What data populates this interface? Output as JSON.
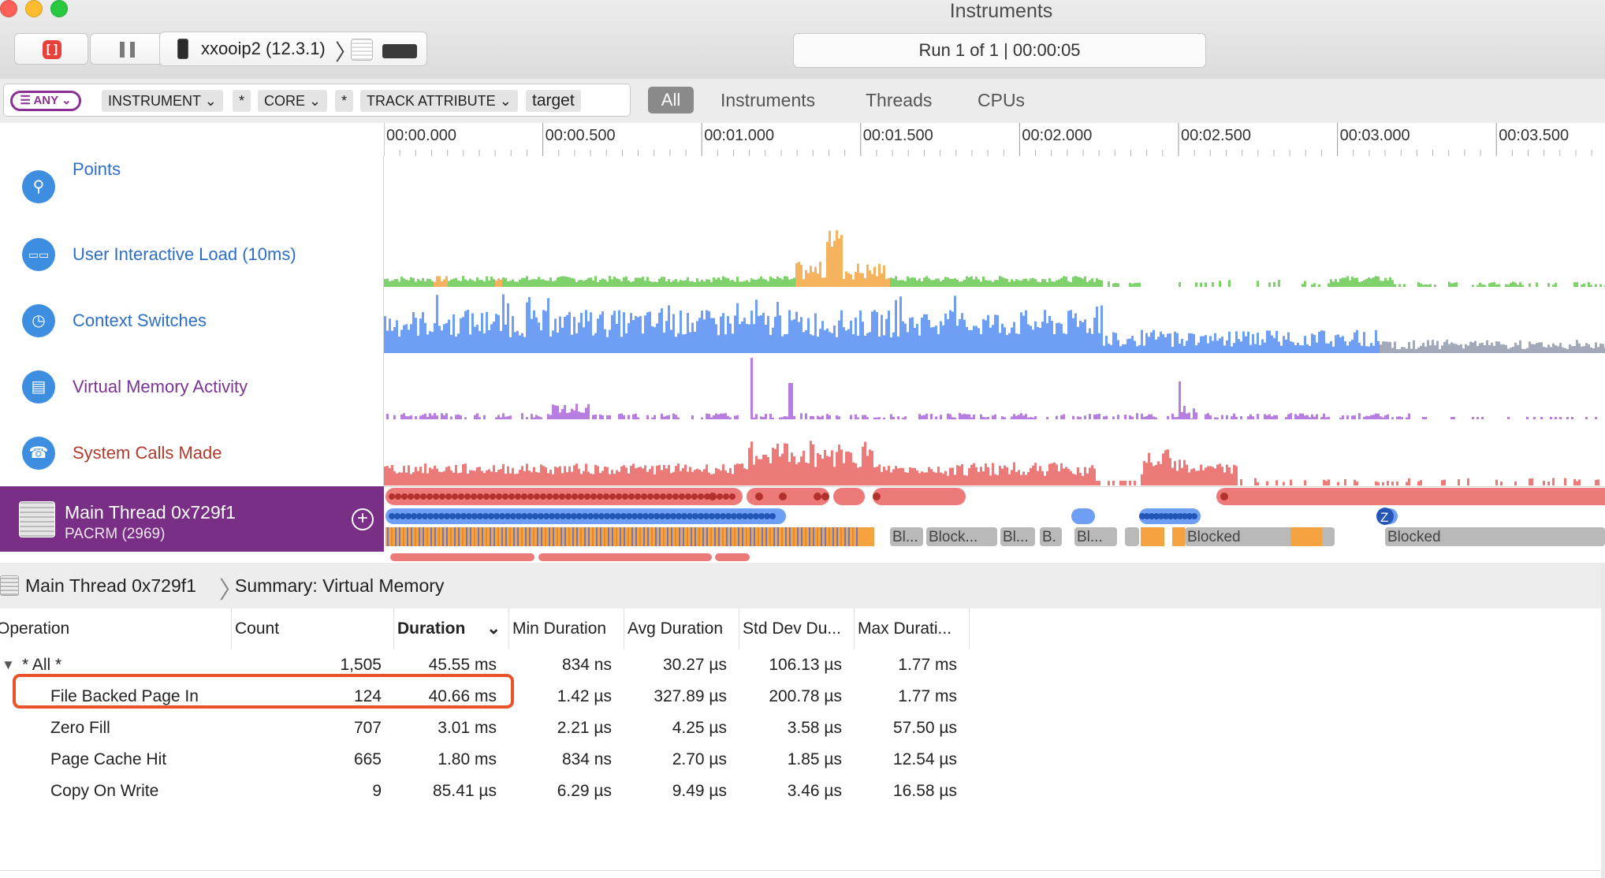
{
  "window": {
    "title": "Instruments"
  },
  "toolbar": {
    "device_label": "xxooip2 (12.3.1)",
    "device_chevron": "〉",
    "run_status": "Run 1 of 1  |  00:00:05"
  },
  "filter": {
    "any_label": "ANY",
    "tokens": [
      "INSTRUMENT",
      "*",
      "CORE",
      "*",
      "TRACK ATTRIBUTE",
      "target"
    ],
    "scopes": [
      "All",
      "Instruments",
      "Threads",
      "CPUs"
    ]
  },
  "ruler": {
    "ticks": [
      "00:00.000",
      "00:00.500",
      "00:01.000",
      "00:01.500",
      "00:02.000",
      "00:02.500",
      "00:03.000",
      "00:03.500"
    ]
  },
  "tracks": [
    {
      "name": "Points",
      "color": "#2d6fc4",
      "icon": "pin-icon"
    },
    {
      "name": "User Interactive Load (10ms)",
      "color": "#2d6fc4",
      "icon": "cpu-load-icon"
    },
    {
      "name": "Context Switches",
      "color": "#2d6fc4",
      "icon": "context-switch-icon"
    },
    {
      "name": "Virtual Memory Activity",
      "color": "#7a3592",
      "icon": "memory-icon"
    },
    {
      "name": "System Calls Made",
      "color": "#b03a2e",
      "icon": "phone-icon"
    }
  ],
  "thread": {
    "name": "Main Thread  0x729f1",
    "process": "PACRM (2969)",
    "states": [
      "Bl...",
      "Block...",
      "Bl...",
      "B.",
      "Bl...",
      "Blocked",
      "Blocked"
    ],
    "badge": "Z"
  },
  "breadcrumb": {
    "thread": "Main Thread  0x729f1",
    "separator": "〉",
    "summary": "Summary: Virtual Memory"
  },
  "table": {
    "columns": [
      "Operation",
      "Count",
      "Duration",
      "Min Duration",
      "Avg Duration",
      "Std Dev Du...",
      "Max Durati..."
    ],
    "sort_column": "Duration",
    "rows": [
      {
        "operation": "* All *",
        "count": "1,505",
        "duration": "45.55 ms",
        "min": "834 ns",
        "avg": "30.27 µs",
        "std": "106.13 µs",
        "max": "1.77 ms"
      },
      {
        "operation": "File Backed Page In",
        "count": "124",
        "duration": "40.66 ms",
        "min": "1.42 µs",
        "avg": "327.89 µs",
        "std": "200.78 µs",
        "max": "1.77 ms"
      },
      {
        "operation": "Zero Fill",
        "count": "707",
        "duration": "3.01 ms",
        "min": "2.21 µs",
        "avg": "4.25 µs",
        "std": "3.58 µs",
        "max": "57.50 µs"
      },
      {
        "operation": "Page Cache Hit",
        "count": "665",
        "duration": "1.80 ms",
        "min": "834 ns",
        "avg": "2.70 µs",
        "std": "1.85 µs",
        "max": "12.54 µs"
      },
      {
        "operation": "Copy On Write",
        "count": "9",
        "duration": "85.41 µs",
        "min": "6.29 µs",
        "avg": "9.49 µs",
        "std": "3.46 µs",
        "max": "16.58 µs"
      }
    ],
    "highlighted_row": "File Backed Page In"
  },
  "colors": {
    "accent_purple": "#7a2f86",
    "highlight_border": "#e8532c",
    "load_green": "#7fd16b",
    "load_orange": "#f5b35e",
    "context_blue": "#6e9ff5",
    "vm_purple": "#b77de0",
    "syscall_red": "#ec7a78"
  }
}
